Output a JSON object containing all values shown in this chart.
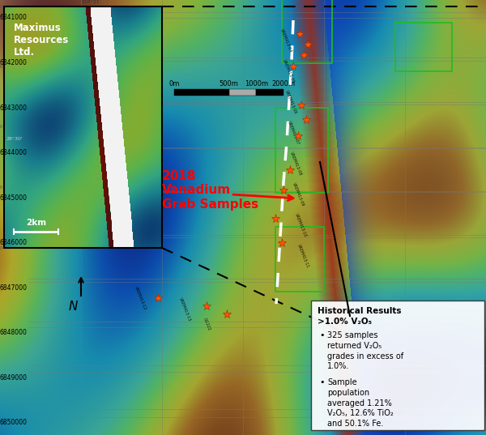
{
  "fig_width": 6.0,
  "fig_height": 5.37,
  "dpi": 100,
  "bg_color": "#ffffff",
  "annotation_2018_text": "2018\nVanadium\nGrab Samples",
  "annotation_2018_color": "red",
  "annotation_2018_fontsize": 11,
  "historical_title": "Historical Results\n>1.0% V₂O₅",
  "historical_bullet1": "325 samples\nreturned V₂O₅\ngrades in excess of\n1.0%.",
  "historical_bullet2": "Sample\npopulation\naveraged 1.21%\nV₂O₅, 12.6% TiO₂\nand 50.1% Fe.",
  "maximus_text": "Maximus\nResources\nLtd.",
  "scale_ticks": [
    "0m",
    "500m",
    "1000m",
    "2000m"
  ],
  "ytick_labels": [
    "6841000",
    "6842000",
    "6843000",
    "6844000",
    "6845000",
    "6846000",
    "6847000",
    "6848000",
    "6849000",
    "6850000"
  ],
  "scalebar_2km_text": "2km",
  "grid_color": "#777777",
  "north_label": "N"
}
